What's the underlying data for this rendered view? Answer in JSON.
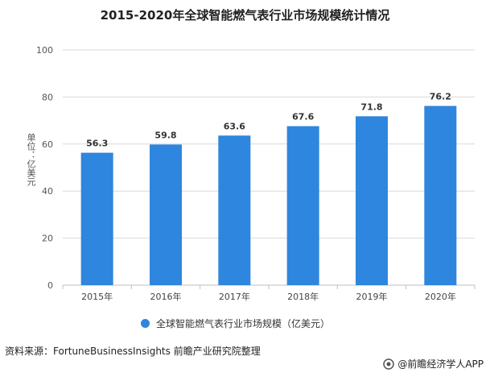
{
  "chart_data": {
    "type": "bar",
    "title": "2015-2020年全球智能燃气表行业市场规模统计情况",
    "categories": [
      "2015年",
      "2016年",
      "2017年",
      "2018年",
      "2019年",
      "2020年"
    ],
    "series": [
      {
        "name": "全球智能燃气表行业市场规模（亿美元）",
        "values": [
          56.3,
          59.8,
          63.6,
          67.6,
          71.8,
          76.2
        ],
        "color": "#2E86DE"
      }
    ],
    "ylabel": "单位：亿美元",
    "ylim": [
      0,
      100
    ],
    "yticks": [
      0,
      20,
      40,
      60,
      80,
      100
    ],
    "grid": true,
    "legend": "bottom"
  },
  "source": "资料来源：FortuneBusinessInsights 前瞻产业研究院整理",
  "brand": "@前瞻经济学人APP",
  "colors": {
    "bar": "#2E86DE",
    "grid": "#D9D9D9",
    "axis": "#BFBFBF"
  }
}
